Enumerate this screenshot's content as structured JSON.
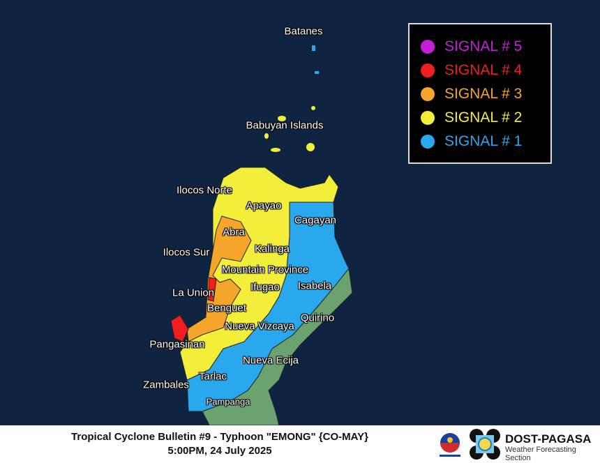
{
  "legend": {
    "items": [
      {
        "label": "SIGNAL # 5",
        "color": "#c41fd6"
      },
      {
        "label": "SIGNAL # 4",
        "color": "#f01e1e"
      },
      {
        "label": "SIGNAL # 3",
        "color": "#f5a52a"
      },
      {
        "label": "SIGNAL # 2",
        "color": "#f2ee3a"
      },
      {
        "label": "SIGNAL # 1",
        "color": "#2aa8ee"
      }
    ]
  },
  "colors": {
    "sea": "#0f2441",
    "no_signal_land": "#6aa36f"
  },
  "provinces": [
    {
      "name": "Batanes",
      "signal": 1
    },
    {
      "name": "Babuyan Islands",
      "signal": 2
    },
    {
      "name": "Ilocos Norte",
      "signal": 2
    },
    {
      "name": "Apayao",
      "signal": 2
    },
    {
      "name": "Cagayan",
      "signal": 1
    },
    {
      "name": "Abra",
      "signal": 3
    },
    {
      "name": "Ilocos Sur",
      "signal": 3
    },
    {
      "name": "Kalinga",
      "signal": 2
    },
    {
      "name": "Mountain Province",
      "signal": 2
    },
    {
      "name": "Isabela",
      "signal": 1
    },
    {
      "name": "La Union",
      "signal": 4
    },
    {
      "name": "Ifugao",
      "signal": 2
    },
    {
      "name": "Benguet",
      "signal": 3
    },
    {
      "name": "Quirino",
      "signal": 1
    },
    {
      "name": "Nueva Vizcaya",
      "signal": 2
    },
    {
      "name": "Pangasinan",
      "signal": 4
    },
    {
      "name": "Nueva Ecija",
      "signal": 1
    },
    {
      "name": "Zambales",
      "signal": 2
    },
    {
      "name": "Tarlac",
      "signal": 1
    },
    {
      "name": "Pampanga",
      "signal": 1
    }
  ],
  "footer": {
    "title": "Tropical Cyclone Bulletin #9 - Typhoon \"EMONG\" {CO-MAY}",
    "datetime": "5:00PM, 24 July 2025",
    "agency": "DOST-PAGASA",
    "section": "Weather Forecasting Section",
    "logo_ph_text": "BAGONG PILIPINAS"
  }
}
